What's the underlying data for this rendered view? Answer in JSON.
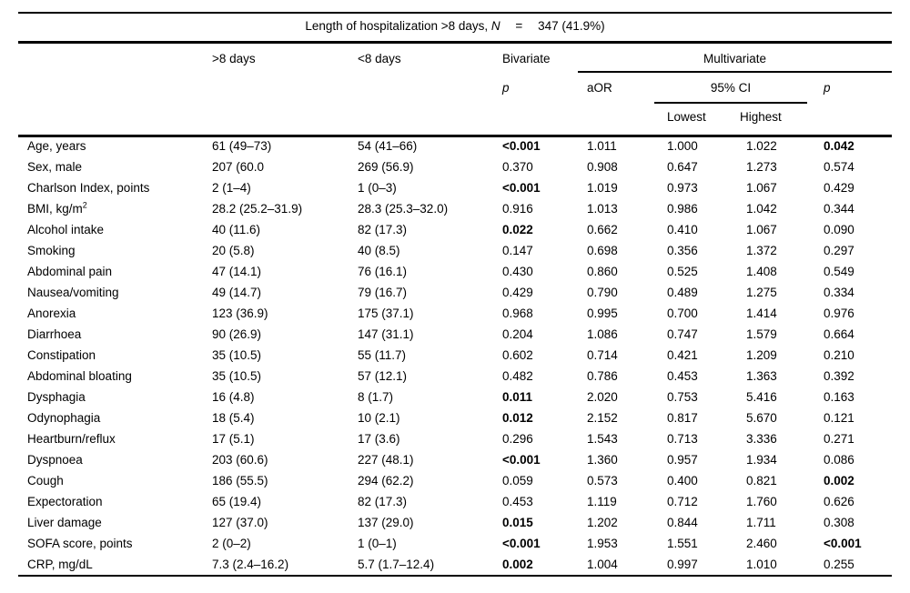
{
  "title": {
    "prefix": "Length of hospitalization >8 days,",
    "n_symbol": "N",
    "equals": "=",
    "value": "347 (41.9%)"
  },
  "header": {
    "col_gt8": ">8 days",
    "col_lt8": "<8 days",
    "bivariate": "Bivariate",
    "multivariate": "Multivariate",
    "bivariate_p": "p",
    "aor": "aOR",
    "ci": "95% CI",
    "multivariate_p": "p",
    "ci_lowest": "Lowest",
    "ci_highest": "Highest"
  },
  "rows": [
    {
      "label": "Age, years",
      "gt8": "61 (49–73)",
      "lt8": "54 (41–66)",
      "biv_p": "<0.001",
      "biv_p_bold": true,
      "aor": "1.011",
      "ci_low": "1.000",
      "ci_high": "1.022",
      "mult_p": "0.042",
      "mult_p_bold": true
    },
    {
      "label": "Sex, male",
      "gt8": "207 (60.0",
      "lt8": "269 (56.9)",
      "biv_p": "0.370",
      "biv_p_bold": false,
      "aor": "0.908",
      "ci_low": "0.647",
      "ci_high": "1.273",
      "mult_p": "0.574",
      "mult_p_bold": false
    },
    {
      "label": "Charlson Index, points",
      "gt8": "2 (1–4)",
      "lt8": "1 (0–3)",
      "biv_p": "<0.001",
      "biv_p_bold": true,
      "aor": "1.019",
      "ci_low": "0.973",
      "ci_high": "1.067",
      "mult_p": "0.429",
      "mult_p_bold": false
    },
    {
      "label": "BMI, kg/m",
      "label_sup": "2",
      "gt8": "28.2 (25.2–31.9)",
      "lt8": "28.3 (25.3–32.0)",
      "biv_p": "0.916",
      "biv_p_bold": false,
      "aor": "1.013",
      "ci_low": "0.986",
      "ci_high": "1.042",
      "mult_p": "0.344",
      "mult_p_bold": false
    },
    {
      "label": "Alcohol intake",
      "gt8": "40 (11.6)",
      "lt8": "82 (17.3)",
      "biv_p": "0.022",
      "biv_p_bold": true,
      "aor": "0.662",
      "ci_low": "0.410",
      "ci_high": "1.067",
      "mult_p": "0.090",
      "mult_p_bold": false
    },
    {
      "label": "Smoking",
      "gt8": "20 (5.8)",
      "lt8": "40 (8.5)",
      "biv_p": "0.147",
      "biv_p_bold": false,
      "aor": "0.698",
      "ci_low": "0.356",
      "ci_high": "1.372",
      "mult_p": "0.297",
      "mult_p_bold": false
    },
    {
      "label": "Abdominal pain",
      "gt8": "47 (14.1)",
      "lt8": "76 (16.1)",
      "biv_p": "0.430",
      "biv_p_bold": false,
      "aor": "0.860",
      "ci_low": "0.525",
      "ci_high": "1.408",
      "mult_p": "0.549",
      "mult_p_bold": false
    },
    {
      "label": "Nausea/vomiting",
      "gt8": "49 (14.7)",
      "lt8": "79 (16.7)",
      "biv_p": "0.429",
      "biv_p_bold": false,
      "aor": "0.790",
      "ci_low": "0.489",
      "ci_high": "1.275",
      "mult_p": "0.334",
      "mult_p_bold": false
    },
    {
      "label": "Anorexia",
      "gt8": "123 (36.9)",
      "lt8": "175 (37.1)",
      "biv_p": "0.968",
      "biv_p_bold": false,
      "aor": "0.995",
      "ci_low": "0.700",
      "ci_high": "1.414",
      "mult_p": "0.976",
      "mult_p_bold": false
    },
    {
      "label": "Diarrhoea",
      "gt8": "90 (26.9)",
      "lt8": "147 (31.1)",
      "biv_p": "0.204",
      "biv_p_bold": false,
      "aor": "1.086",
      "ci_low": "0.747",
      "ci_high": "1.579",
      "mult_p": "0.664",
      "mult_p_bold": false
    },
    {
      "label": "Constipation",
      "gt8": "35 (10.5)",
      "lt8": "55 (11.7)",
      "biv_p": "0.602",
      "biv_p_bold": false,
      "aor": "0.714",
      "ci_low": "0.421",
      "ci_high": "1.209",
      "mult_p": "0.210",
      "mult_p_bold": false
    },
    {
      "label": "Abdominal bloating",
      "gt8": "35 (10.5)",
      "lt8": "57 (12.1)",
      "biv_p": "0.482",
      "biv_p_bold": false,
      "aor": "0.786",
      "ci_low": "0.453",
      "ci_high": "1.363",
      "mult_p": "0.392",
      "mult_p_bold": false
    },
    {
      "label": "Dysphagia",
      "gt8": "16 (4.8)",
      "lt8": "8 (1.7)",
      "biv_p": "0.011",
      "biv_p_bold": true,
      "aor": "2.020",
      "ci_low": "0.753",
      "ci_high": "5.416",
      "mult_p": "0.163",
      "mult_p_bold": false
    },
    {
      "label": "Odynophagia",
      "gt8": "18 (5.4)",
      "lt8": "10 (2.1)",
      "biv_p": "0.012",
      "biv_p_bold": true,
      "aor": "2.152",
      "ci_low": "0.817",
      "ci_high": "5.670",
      "mult_p": "0.121",
      "mult_p_bold": false
    },
    {
      "label": "Heartburn/reflux",
      "gt8": "17 (5.1)",
      "lt8": "17 (3.6)",
      "biv_p": "0.296",
      "biv_p_bold": false,
      "aor": "1.543",
      "ci_low": "0.713",
      "ci_high": "3.336",
      "mult_p": "0.271",
      "mult_p_bold": false
    },
    {
      "label": "Dyspnoea",
      "gt8": "203 (60.6)",
      "lt8": "227 (48.1)",
      "biv_p": "<0.001",
      "biv_p_bold": true,
      "aor": "1.360",
      "ci_low": "0.957",
      "ci_high": "1.934",
      "mult_p": "0.086",
      "mult_p_bold": false
    },
    {
      "label": "Cough",
      "gt8": "186 (55.5)",
      "lt8": "294 (62.2)",
      "biv_p": "0.059",
      "biv_p_bold": false,
      "aor": "0.573",
      "ci_low": "0.400",
      "ci_high": "0.821",
      "mult_p": "0.002",
      "mult_p_bold": true
    },
    {
      "label": "Expectoration",
      "gt8": "65 (19.4)",
      "lt8": "82 (17.3)",
      "biv_p": "0.453",
      "biv_p_bold": false,
      "aor": "1.119",
      "ci_low": "0.712",
      "ci_high": "1.760",
      "mult_p": "0.626",
      "mult_p_bold": false
    },
    {
      "label": "Liver damage",
      "gt8": "127 (37.0)",
      "lt8": "137 (29.0)",
      "biv_p": "0.015",
      "biv_p_bold": true,
      "aor": "1.202",
      "ci_low": "0.844",
      "ci_high": "1.711",
      "mult_p": "0.308",
      "mult_p_bold": false
    },
    {
      "label": "SOFA score, points",
      "gt8": "2 (0–2)",
      "lt8": "1 (0–1)",
      "biv_p": "<0.001",
      "biv_p_bold": true,
      "aor": "1.953",
      "ci_low": "1.551",
      "ci_high": "2.460",
      "mult_p": "<0.001",
      "mult_p_bold": true
    },
    {
      "label": "CRP, mg/dL",
      "gt8": "7.3 (2.4–16.2)",
      "lt8": "5.7 (1.7–12.4)",
      "biv_p": "0.002",
      "biv_p_bold": true,
      "aor": "1.004",
      "ci_low": "0.997",
      "ci_high": "1.010",
      "mult_p": "0.255",
      "mult_p_bold": false
    }
  ]
}
